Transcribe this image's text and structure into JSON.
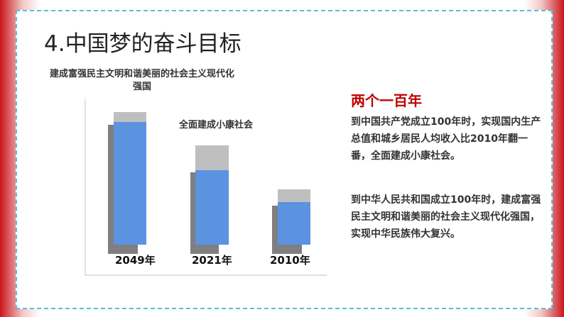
{
  "header": {
    "title": "4.中国梦的奋斗目标"
  },
  "diagram": {
    "top_label": "建成富强民主文明和谐美丽的社会主义现代化强国",
    "middle_label": "全面建成小康社会",
    "years": [
      "2049年",
      "2021年",
      "2010年"
    ]
  },
  "sidebar": {
    "heading": "两个一百年",
    "paragraphs": [
      "到中国共产党成立100年时，实现国内生产总值和城乡居民人均收入比2010年翻一番，全面建成小康社会。",
      "到中华人民共和国成立100年时，建成富强民主文明和谐美丽的社会主义现代化强国，实现中华民族伟大复兴。"
    ]
  }
}
